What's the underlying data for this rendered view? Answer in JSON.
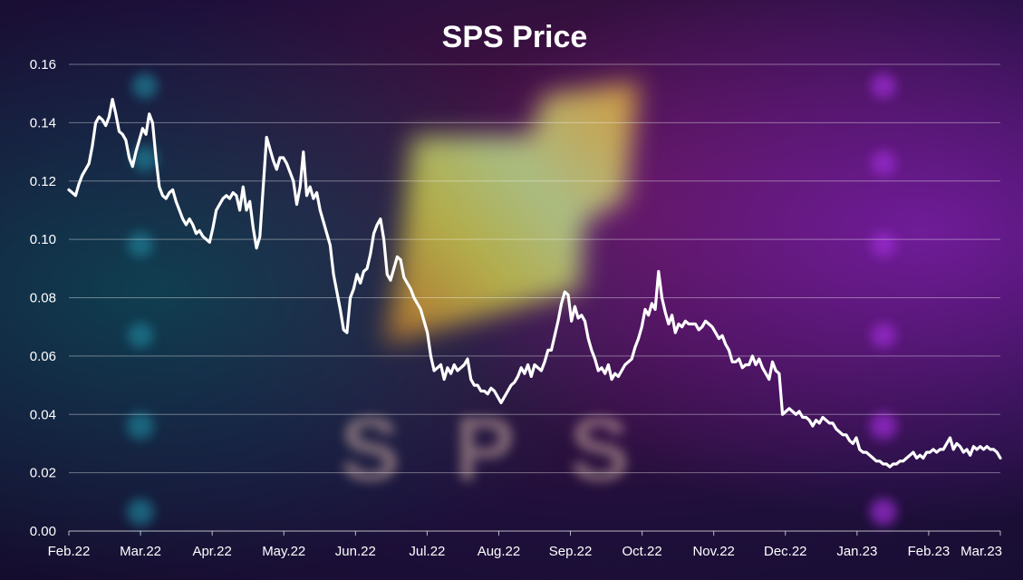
{
  "chart_data": {
    "type": "line",
    "title": "SPS Price",
    "xlabel": "",
    "ylabel": "",
    "ylim": [
      0,
      0.16
    ],
    "yticks": [
      "0.00",
      "0.02",
      "0.04",
      "0.06",
      "0.08",
      "0.10",
      "0.12",
      "0.14",
      "0.16"
    ],
    "xticks": [
      "Feb.22",
      "Mar.22",
      "Apr.22",
      "May.22",
      "Jun.22",
      "Jul.22",
      "Aug.22",
      "Sep.22",
      "Oct.22",
      "Nov.22",
      "Dec.22",
      "Jan.23",
      "Feb.23",
      "Mar.23"
    ],
    "grid": true,
    "line_color": "#ffffff",
    "background_watermark": "SPS",
    "series": [
      {
        "values": [
          0.117,
          0.116,
          0.115,
          0.119,
          0.122,
          0.124,
          0.126,
          0.132,
          0.14,
          0.142,
          0.141,
          0.139,
          0.142,
          0.148,
          0.143,
          0.137,
          0.136,
          0.134,
          0.128,
          0.125,
          0.13,
          0.134,
          0.138,
          0.136,
          0.143,
          0.14,
          0.128,
          0.118,
          0.115,
          0.114,
          0.116,
          0.117,
          0.113,
          0.11,
          0.107,
          0.105,
          0.107,
          0.105,
          0.102,
          0.103,
          0.101,
          0.1,
          0.099,
          0.104,
          0.11,
          0.112,
          0.114,
          0.115,
          0.114,
          0.116,
          0.115,
          0.11,
          0.118,
          0.11,
          0.113,
          0.104,
          0.097,
          0.101,
          0.118,
          0.135,
          0.131,
          0.127,
          0.124,
          0.128,
          0.128,
          0.126,
          0.123,
          0.12,
          0.112,
          0.118,
          0.13,
          0.115,
          0.118,
          0.114,
          0.116,
          0.11,
          0.106,
          0.102,
          0.098,
          0.088,
          0.082,
          0.076,
          0.069,
          0.068,
          0.08,
          0.083,
          0.088,
          0.085,
          0.089,
          0.09,
          0.095,
          0.102,
          0.105,
          0.107,
          0.1,
          0.088,
          0.086,
          0.09,
          0.094,
          0.093,
          0.087,
          0.085,
          0.083,
          0.08,
          0.078,
          0.076,
          0.072,
          0.068,
          0.06,
          0.055,
          0.056,
          0.057,
          0.052,
          0.056,
          0.054,
          0.057,
          0.055,
          0.056,
          0.057,
          0.059,
          0.052,
          0.05,
          0.05,
          0.048,
          0.048,
          0.047,
          0.049,
          0.048,
          0.046,
          0.044,
          0.046,
          0.048,
          0.05,
          0.051,
          0.053,
          0.056,
          0.054,
          0.057,
          0.053,
          0.057,
          0.056,
          0.055,
          0.058,
          0.062,
          0.062,
          0.067,
          0.072,
          0.078,
          0.082,
          0.081,
          0.072,
          0.077,
          0.073,
          0.074,
          0.072,
          0.066,
          0.062,
          0.059,
          0.055,
          0.056,
          0.054,
          0.057,
          0.052,
          0.054,
          0.053,
          0.055,
          0.057,
          0.058,
          0.059,
          0.063,
          0.066,
          0.07,
          0.076,
          0.074,
          0.078,
          0.076,
          0.089,
          0.08,
          0.075,
          0.071,
          0.074,
          0.068,
          0.071,
          0.07,
          0.072,
          0.071,
          0.071,
          0.071,
          0.069,
          0.07,
          0.072,
          0.071,
          0.07,
          0.068,
          0.066,
          0.067,
          0.064,
          0.062,
          0.058,
          0.058,
          0.059,
          0.056,
          0.057,
          0.057,
          0.06,
          0.057,
          0.059,
          0.056,
          0.054,
          0.052,
          0.058,
          0.055,
          0.054,
          0.04,
          0.041,
          0.042,
          0.041,
          0.04,
          0.041,
          0.039,
          0.039,
          0.038,
          0.036,
          0.038,
          0.037,
          0.039,
          0.038,
          0.037,
          0.037,
          0.035,
          0.034,
          0.033,
          0.033,
          0.031,
          0.03,
          0.032,
          0.028,
          0.027,
          0.027,
          0.026,
          0.025,
          0.024,
          0.024,
          0.023,
          0.023,
          0.022,
          0.023,
          0.023,
          0.024,
          0.024,
          0.025,
          0.026,
          0.027,
          0.025,
          0.026,
          0.025,
          0.027,
          0.027,
          0.028,
          0.027,
          0.028,
          0.028,
          0.03,
          0.032,
          0.028,
          0.03,
          0.029,
          0.027,
          0.028,
          0.026,
          0.029,
          0.028,
          0.029,
          0.028,
          0.029,
          0.028,
          0.028,
          0.027,
          0.025
        ]
      }
    ]
  }
}
